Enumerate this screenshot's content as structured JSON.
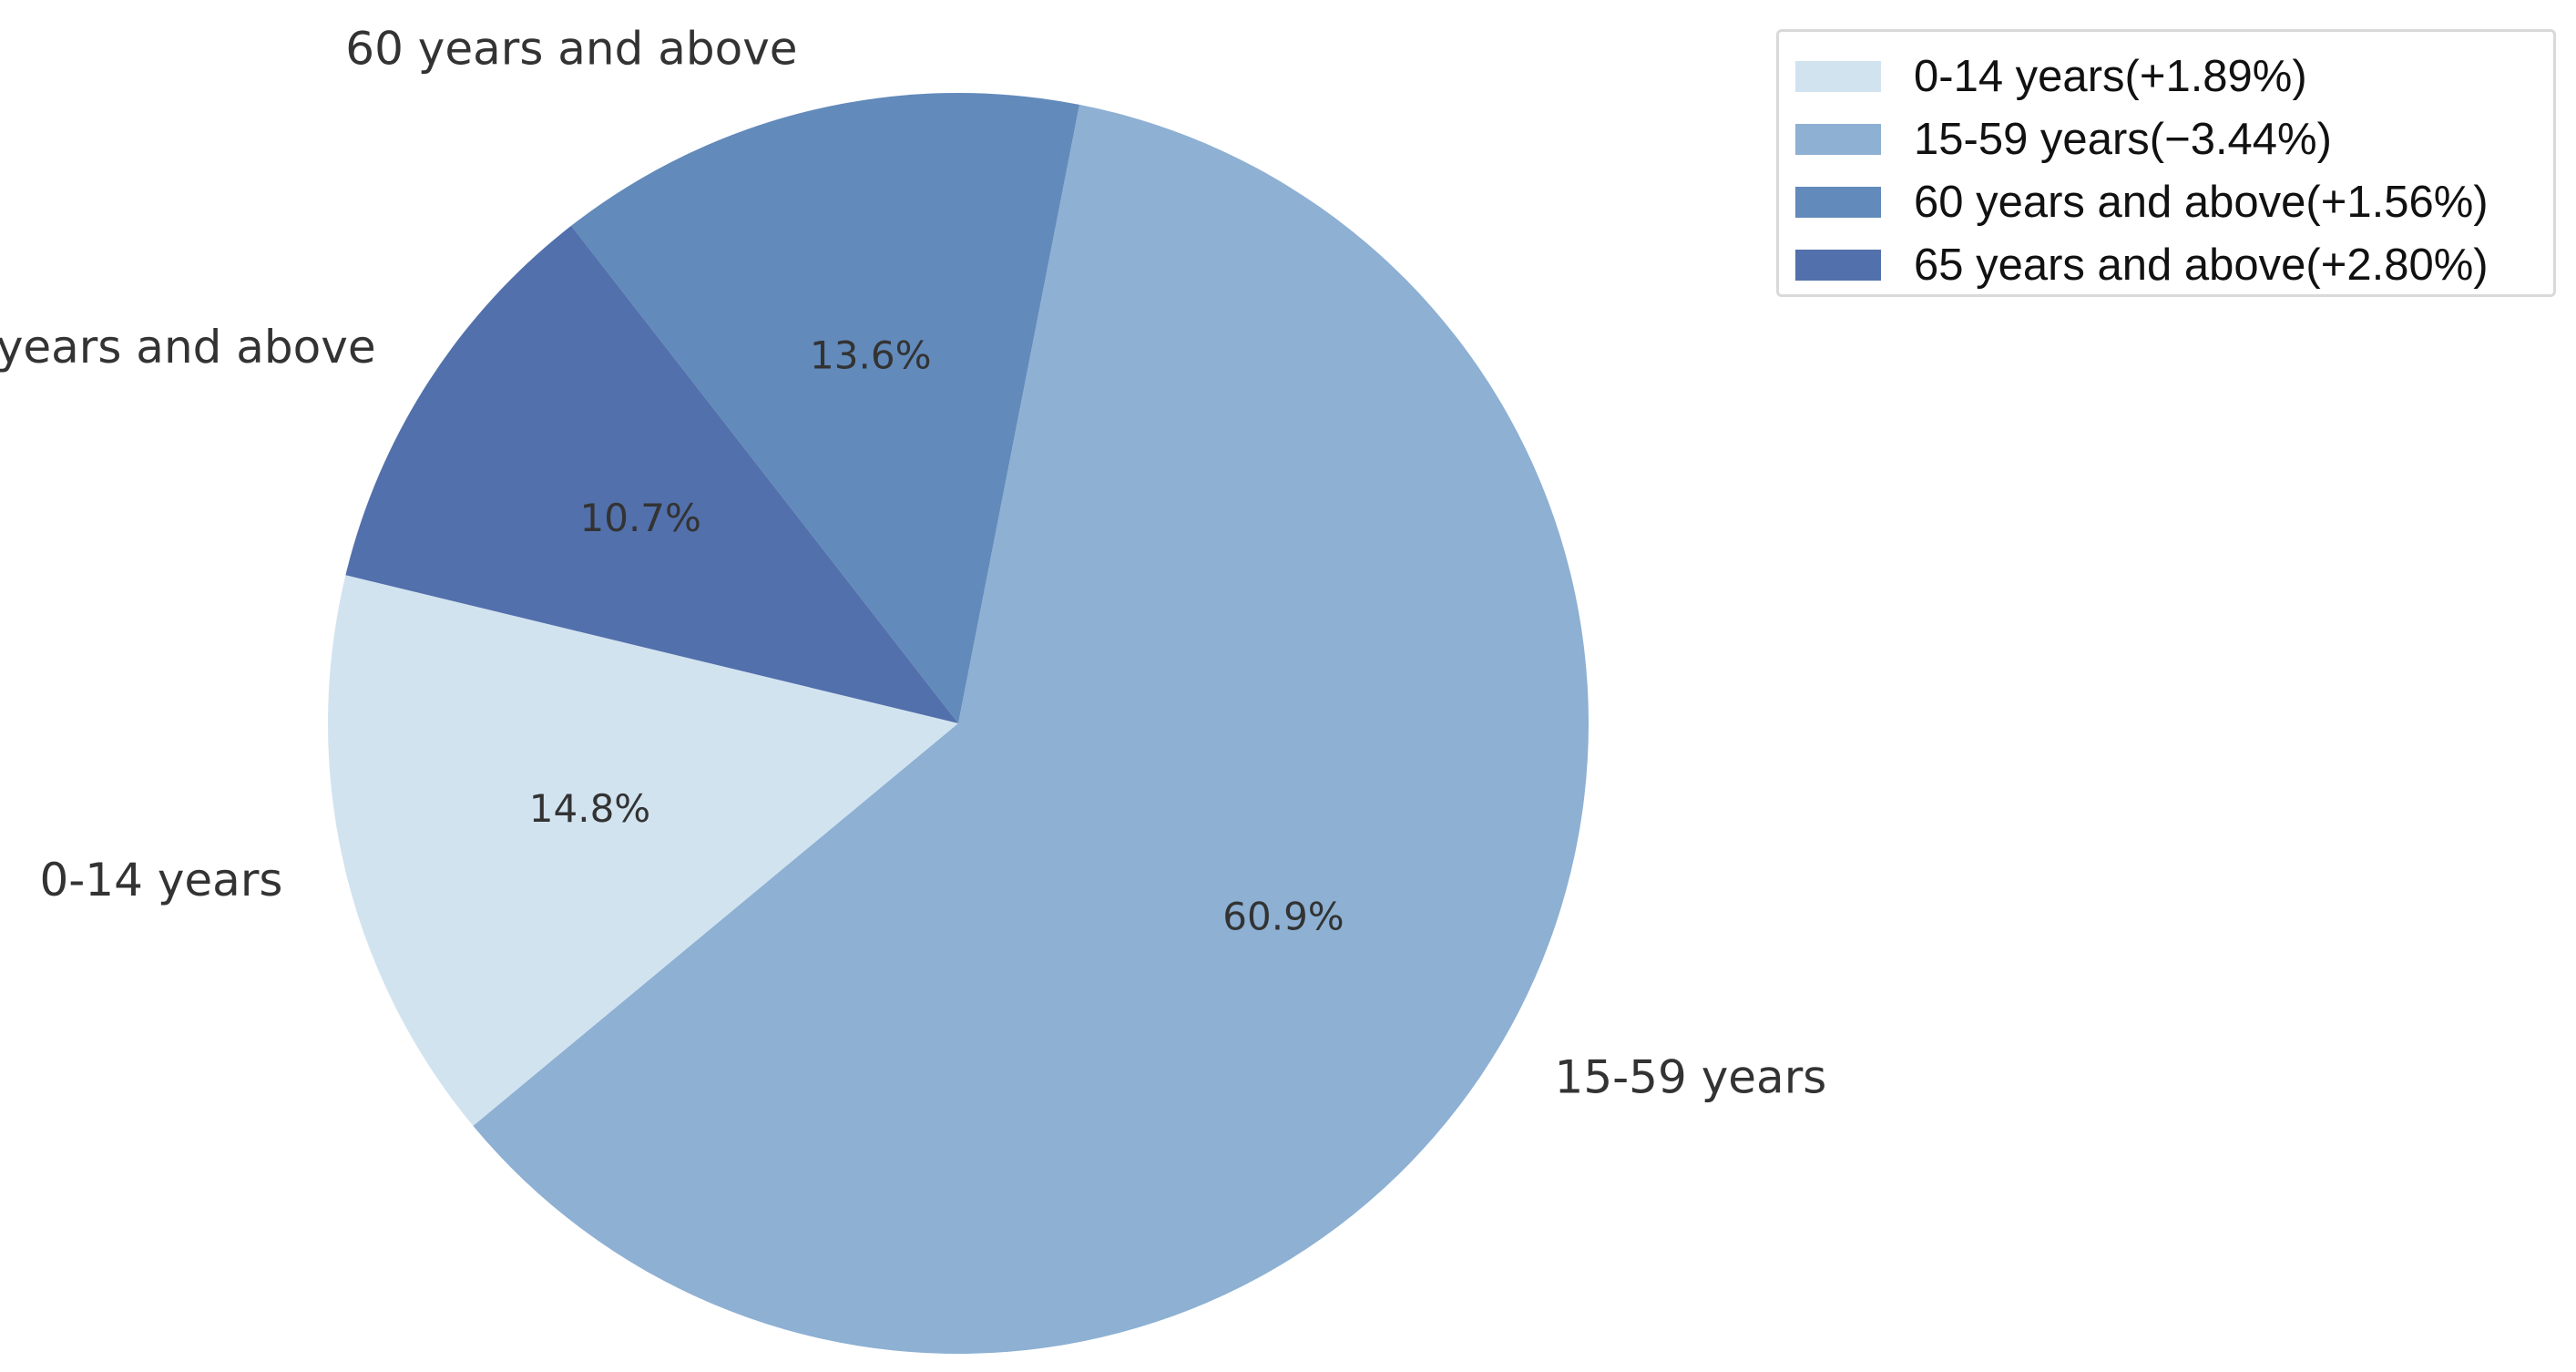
{
  "chart_data": {
    "type": "pie",
    "title": "",
    "categories": [
      "0-14 years",
      "15-59 years",
      "60 years and above",
      "65 years and above"
    ],
    "values": [
      14.8,
      60.9,
      13.6,
      10.7
    ],
    "percent_labels": [
      "14.8%",
      "60.9%",
      "13.6%",
      "10.7%"
    ],
    "colors": [
      "#d2e3f0",
      "#8db0d3",
      "#628abb",
      "#5270ab"
    ],
    "legend": {
      "placement": "top-right",
      "entries": [
        "0-14 years(+1.89%)",
        "15-59 years(−3.44%)",
        "60 years and above(+1.56%)",
        "65 years and above(+2.80%)"
      ]
    }
  }
}
